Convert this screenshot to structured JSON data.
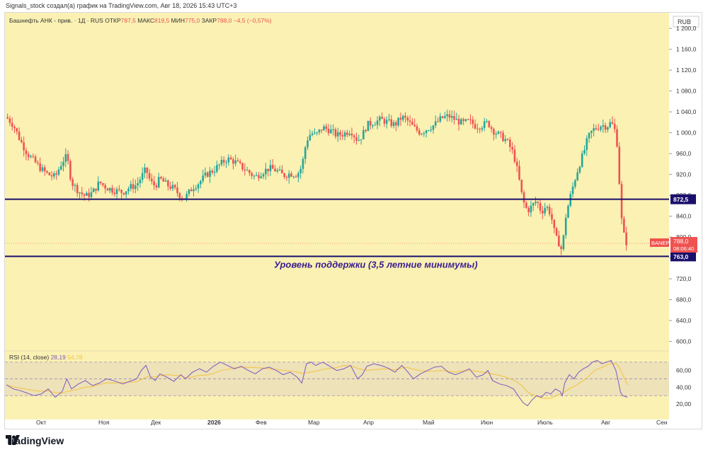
{
  "header": {
    "created_by": "Signals_stock создал(а) график на TradingView.com, Авг 18, 2026 15:43 UTC+3"
  },
  "legend": {
    "title": "Башнефть АНК - прив. · 1Д · RUS",
    "open_label": "ОТКР",
    "open_value": "787,5",
    "high_label": "МАКС",
    "high_value": "819,5",
    "low_label": "МИН",
    "low_value": "775,0",
    "close_label": "ЗАКР",
    "close_value": "788,0",
    "change": "−4,5 (−0,57%)"
  },
  "currency": "RUB",
  "price_tag": {
    "ticker": "BANEP",
    "price": "788,0",
    "countdown": "08:06:40"
  },
  "levels": {
    "resistance_label": "872,5",
    "support_label": "763,0"
  },
  "annotation": "Уровень поддержки (3,5 летние минимумы)",
  "rsi": {
    "title": "RSI (14, close)",
    "value1": "28,19",
    "value2": "54,78",
    "ticks": [
      "60,00",
      "40,00",
      "20,00"
    ]
  },
  "brand": "TradingView",
  "colors": {
    "background": "#fbf1b3",
    "up": "#26a69a",
    "down": "#ef5350",
    "level_line": "#1a0f6b",
    "rsi_line": "#7e57c2",
    "rsi_ma": "#f5c242",
    "annotation": "#3b1d8f",
    "tag_red": "#ef5350"
  },
  "chart_data": {
    "type": "candlestick",
    "y_axis": {
      "min": 590,
      "max": 1230,
      "ticks": [
        "1 200,0",
        "1 160,0",
        "1 120,0",
        "1 080,0",
        "1 040,0",
        "1 000,0",
        "960,0",
        "920,0",
        "880,0",
        "840,0",
        "800,0",
        "760,0",
        "720,0",
        "680,0",
        "640,0",
        "600,0"
      ]
    },
    "x_axis": {
      "labels": [
        "Окт",
        "Ноя",
        "Дек",
        "2026",
        "Фев",
        "Мар",
        "Апр",
        "Май",
        "Июн",
        "Июль",
        "Авг",
        "Сен"
      ]
    },
    "levels": [
      872.5,
      763.0
    ],
    "close_path": [
      [
        0,
        1030
      ],
      [
        6,
        1015
      ],
      [
        12,
        985
      ],
      [
        18,
        960
      ],
      [
        24,
        945
      ],
      [
        30,
        930
      ],
      [
        36,
        920
      ],
      [
        42,
        915
      ],
      [
        48,
        945
      ],
      [
        52,
        955
      ],
      [
        56,
        905
      ],
      [
        62,
        888
      ],
      [
        68,
        878
      ],
      [
        74,
        885
      ],
      [
        80,
        905
      ],
      [
        86,
        895
      ],
      [
        92,
        890
      ],
      [
        100,
        886
      ],
      [
        106,
        895
      ],
      [
        112,
        900
      ],
      [
        116,
        915
      ],
      [
        120,
        930
      ],
      [
        124,
        905
      ],
      [
        128,
        898
      ],
      [
        132,
        912
      ],
      [
        138,
        900
      ],
      [
        144,
        893
      ],
      [
        150,
        878
      ],
      [
        154,
        876
      ],
      [
        160,
        895
      ],
      [
        166,
        905
      ],
      [
        172,
        920
      ],
      [
        178,
        928
      ],
      [
        184,
        940
      ],
      [
        190,
        950
      ],
      [
        196,
        945
      ],
      [
        202,
        935
      ],
      [
        208,
        925
      ],
      [
        214,
        915
      ],
      [
        220,
        925
      ],
      [
        226,
        932
      ],
      [
        232,
        928
      ],
      [
        238,
        918
      ],
      [
        244,
        922
      ],
      [
        250,
        920
      ],
      [
        254,
        935
      ],
      [
        258,
        985
      ],
      [
        262,
        1000
      ],
      [
        266,
        995
      ],
      [
        272,
        1010
      ],
      [
        278,
        1005
      ],
      [
        284,
        995
      ],
      [
        290,
        998
      ],
      [
        296,
        1005
      ],
      [
        302,
        985
      ],
      [
        306,
        995
      ],
      [
        310,
        1015
      ],
      [
        316,
        1020
      ],
      [
        322,
        1025
      ],
      [
        328,
        1020
      ],
      [
        334,
        1015
      ],
      [
        340,
        1030
      ],
      [
        344,
        1025
      ],
      [
        350,
        1010
      ],
      [
        356,
        1000
      ],
      [
        362,
        1008
      ],
      [
        368,
        1015
      ],
      [
        374,
        1028
      ],
      [
        380,
        1032
      ],
      [
        386,
        1025
      ],
      [
        392,
        1018
      ],
      [
        398,
        1022
      ],
      [
        404,
        1012
      ],
      [
        410,
        1015
      ],
      [
        414,
        1020
      ],
      [
        418,
        1005
      ],
      [
        424,
        995
      ],
      [
        430,
        985
      ],
      [
        436,
        960
      ],
      [
        440,
        920
      ],
      [
        444,
        870
      ],
      [
        448,
        850
      ],
      [
        452,
        860
      ],
      [
        456,
        870
      ],
      [
        460,
        848
      ],
      [
        464,
        860
      ],
      [
        468,
        845
      ],
      [
        472,
        800
      ],
      [
        476,
        785
      ],
      [
        478,
        770
      ],
      [
        480,
        830
      ],
      [
        484,
        870
      ],
      [
        488,
        905
      ],
      [
        492,
        935
      ],
      [
        496,
        960
      ],
      [
        500,
        990
      ],
      [
        504,
        1005
      ],
      [
        508,
        1010
      ],
      [
        512,
        1015
      ],
      [
        516,
        1012
      ],
      [
        520,
        1020
      ],
      [
        524,
        1000
      ],
      [
        526,
        960
      ],
      [
        528,
        850
      ],
      [
        530,
        815
      ],
      [
        532,
        792
      ],
      [
        534,
        788
      ]
    ],
    "rsi_path": [
      [
        0,
        43
      ],
      [
        6,
        38
      ],
      [
        12,
        36
      ],
      [
        18,
        33
      ],
      [
        24,
        30
      ],
      [
        30,
        32
      ],
      [
        36,
        38
      ],
      [
        42,
        28
      ],
      [
        48,
        35
      ],
      [
        52,
        50
      ],
      [
        56,
        38
      ],
      [
        62,
        44
      ],
      [
        68,
        48
      ],
      [
        74,
        42
      ],
      [
        80,
        45
      ],
      [
        86,
        50
      ],
      [
        92,
        48
      ],
      [
        100,
        44
      ],
      [
        106,
        47
      ],
      [
        112,
        50
      ],
      [
        116,
        60
      ],
      [
        120,
        66
      ],
      [
        124,
        52
      ],
      [
        128,
        48
      ],
      [
        132,
        56
      ],
      [
        138,
        52
      ],
      [
        144,
        47
      ],
      [
        150,
        55
      ],
      [
        154,
        50
      ],
      [
        160,
        58
      ],
      [
        166,
        62
      ],
      [
        172,
        58
      ],
      [
        178,
        65
      ],
      [
        184,
        70
      ],
      [
        190,
        66
      ],
      [
        196,
        62
      ],
      [
        202,
        65
      ],
      [
        208,
        60
      ],
      [
        214,
        56
      ],
      [
        220,
        62
      ],
      [
        226,
        64
      ],
      [
        232,
        60
      ],
      [
        238,
        55
      ],
      [
        244,
        58
      ],
      [
        250,
        52
      ],
      [
        254,
        45
      ],
      [
        258,
        68
      ],
      [
        262,
        70
      ],
      [
        266,
        66
      ],
      [
        272,
        70
      ],
      [
        278,
        65
      ],
      [
        284,
        60
      ],
      [
        290,
        62
      ],
      [
        296,
        66
      ],
      [
        302,
        50
      ],
      [
        306,
        55
      ],
      [
        310,
        65
      ],
      [
        316,
        68
      ],
      [
        322,
        66
      ],
      [
        328,
        63
      ],
      [
        334,
        58
      ],
      [
        340,
        66
      ],
      [
        344,
        60
      ],
      [
        350,
        50
      ],
      [
        356,
        56
      ],
      [
        362,
        60
      ],
      [
        368,
        64
      ],
      [
        374,
        65
      ],
      [
        380,
        58
      ],
      [
        386,
        55
      ],
      [
        392,
        58
      ],
      [
        398,
        62
      ],
      [
        404,
        52
      ],
      [
        410,
        55
      ],
      [
        414,
        60
      ],
      [
        418,
        48
      ],
      [
        424,
        44
      ],
      [
        430,
        42
      ],
      [
        436,
        38
      ],
      [
        440,
        30
      ],
      [
        444,
        22
      ],
      [
        448,
        18
      ],
      [
        452,
        25
      ],
      [
        456,
        30
      ],
      [
        460,
        28
      ],
      [
        464,
        34
      ],
      [
        468,
        32
      ],
      [
        472,
        38
      ],
      [
        476,
        35
      ],
      [
        478,
        30
      ],
      [
        480,
        45
      ],
      [
        484,
        55
      ],
      [
        488,
        50
      ],
      [
        492,
        58
      ],
      [
        496,
        62
      ],
      [
        500,
        65
      ],
      [
        504,
        70
      ],
      [
        508,
        72
      ],
      [
        512,
        68
      ],
      [
        516,
        70
      ],
      [
        520,
        72
      ],
      [
        524,
        60
      ],
      [
        526,
        48
      ],
      [
        528,
        34
      ],
      [
        530,
        30
      ],
      [
        532,
        29
      ],
      [
        534,
        28
      ]
    ]
  }
}
